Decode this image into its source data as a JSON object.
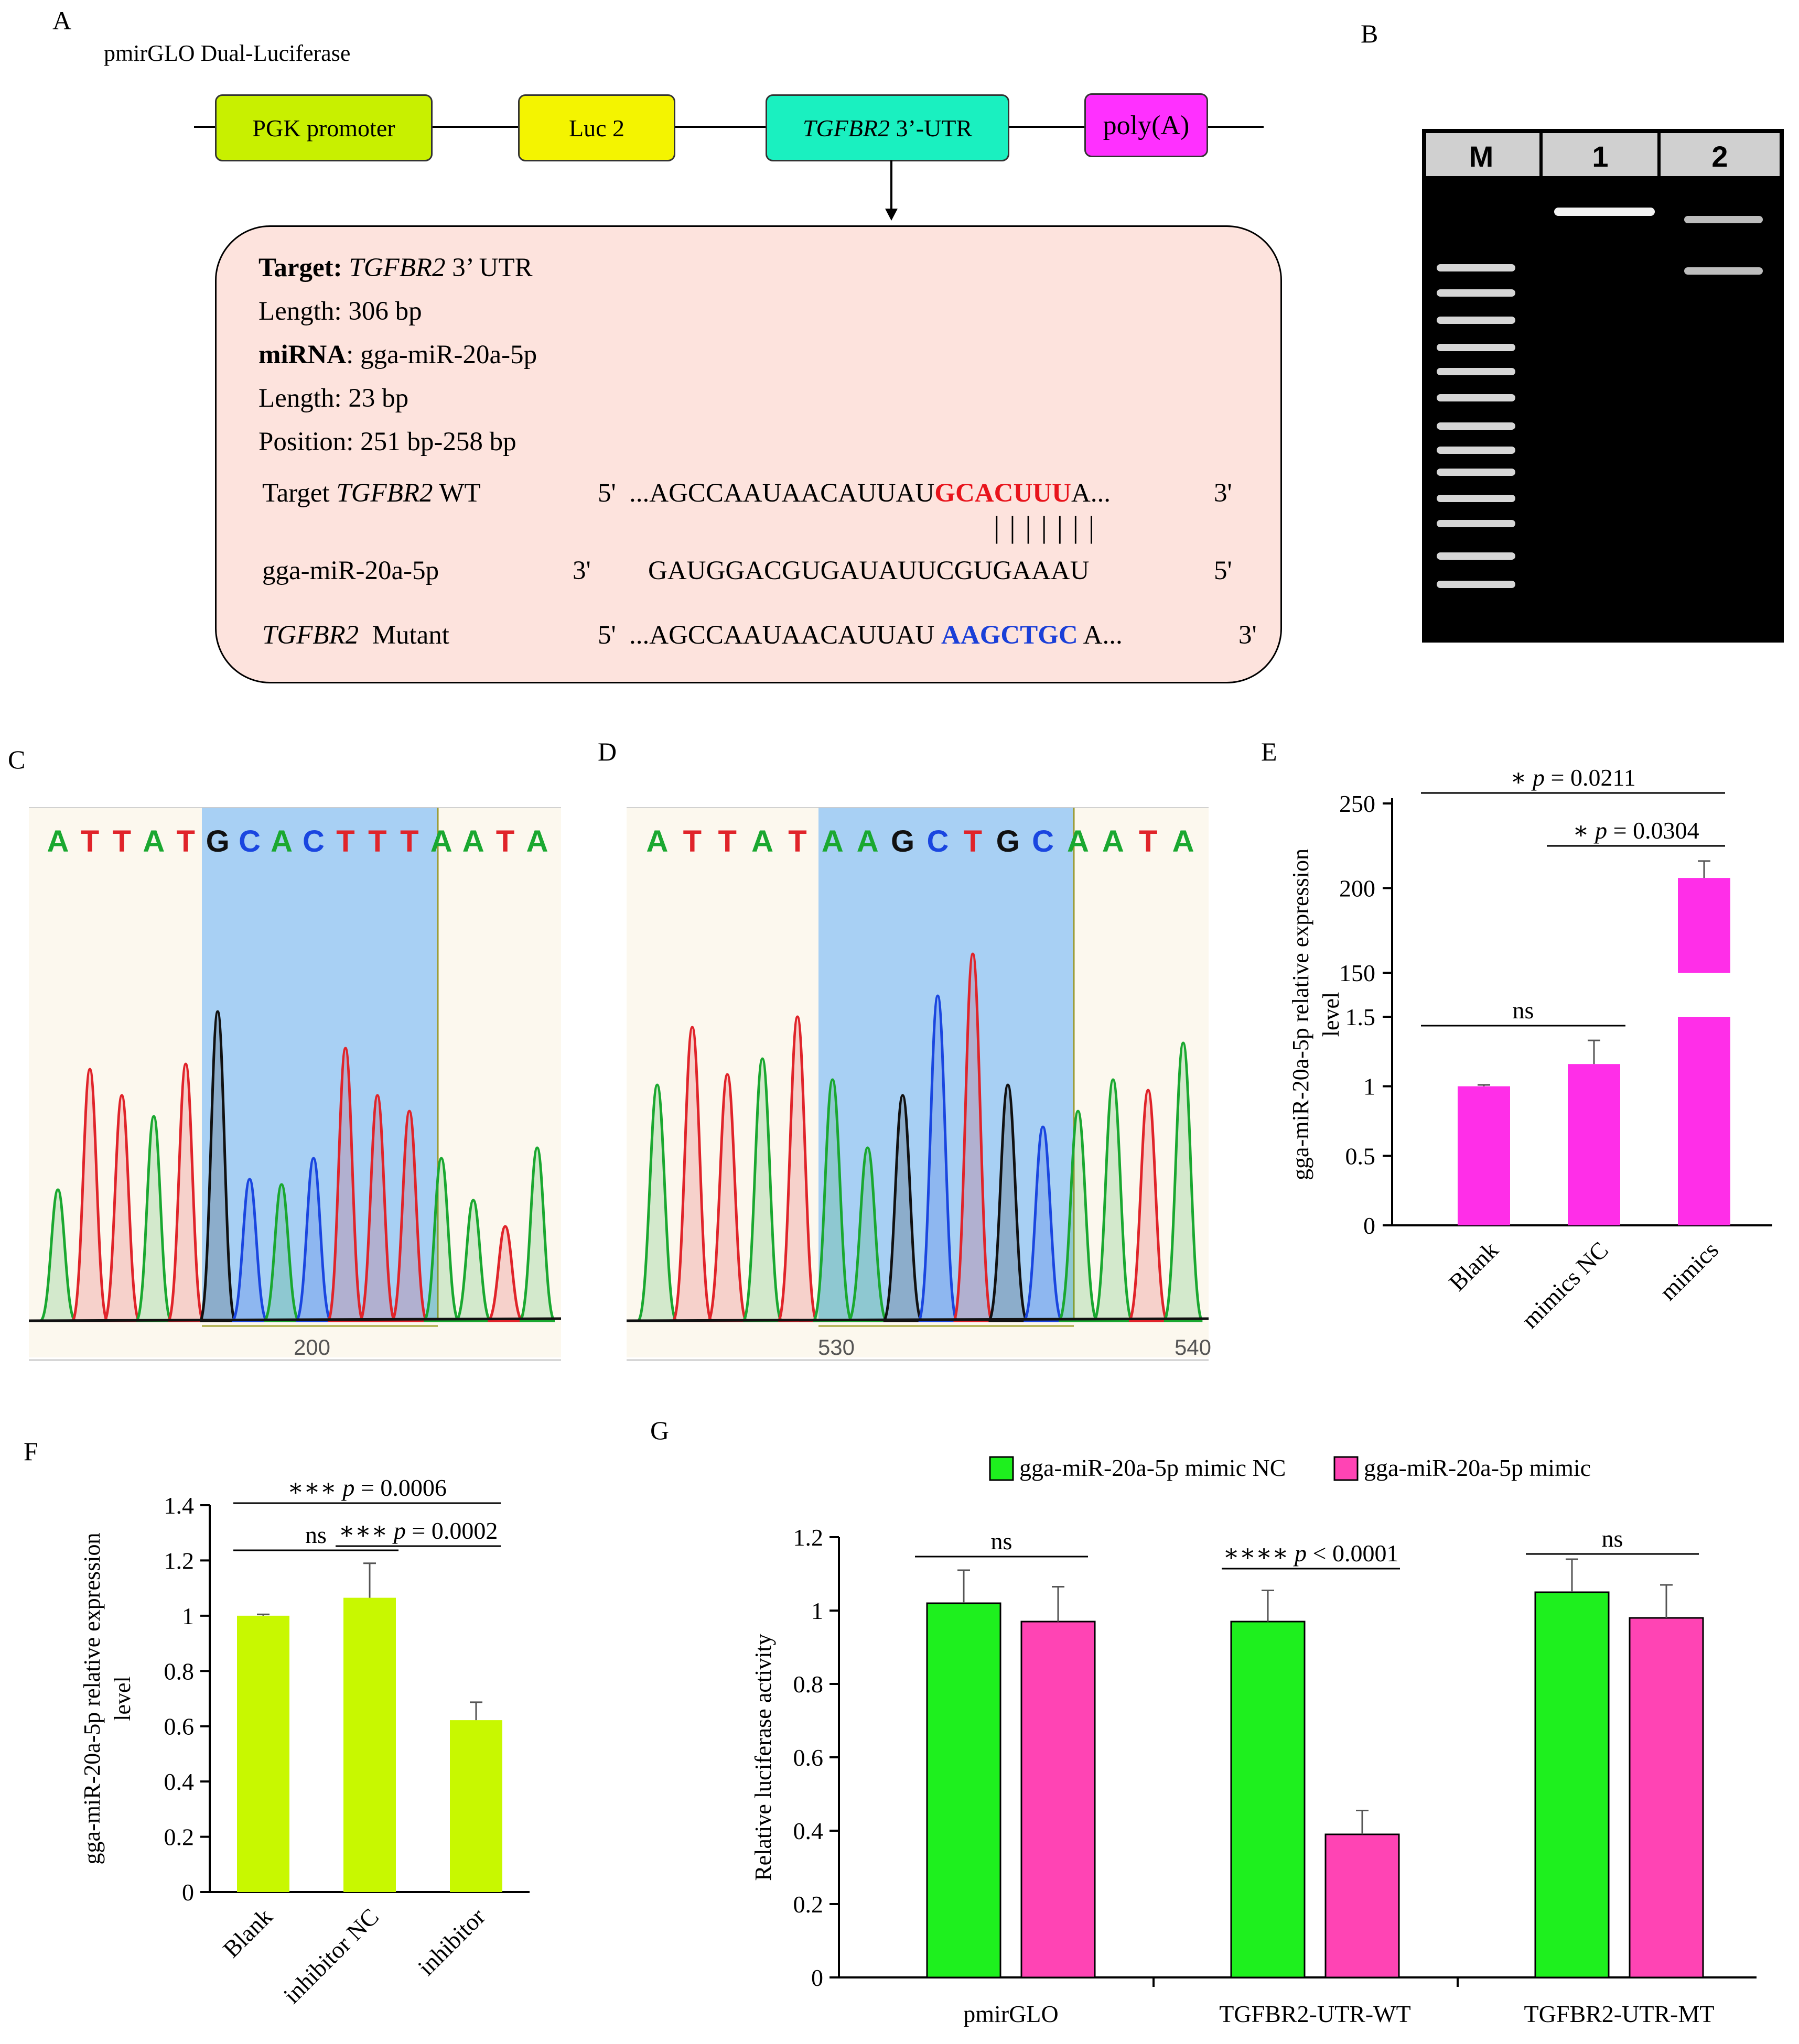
{
  "panel_labels": {
    "a": "A",
    "b": "B",
    "c": "C",
    "d": "D",
    "e": "E",
    "f": "F",
    "g": "G"
  },
  "panel_a": {
    "vector_title": "pmirGLO Dual-Luciferase",
    "boxes": {
      "pgk": {
        "label": "PGK promoter",
        "color": "#c8f000"
      },
      "luc": {
        "label": "Luc 2",
        "color": "#f4f400"
      },
      "utr": {
        "gene": "TGFBR2",
        "label": " 3’-UTR",
        "color": "#1af0c0"
      },
      "polya": {
        "label": "poly(A)",
        "color": "#ff30ff"
      }
    },
    "info_bg": "#fde3dd",
    "info": {
      "target_label": "Target:",
      "target_gene": "TGFBR2",
      "target_rest": " 3’ UTR",
      "length1": "Length: 306 bp",
      "mirna_label": "miRNA",
      "mirna_rest": ": gga-miR-20a-5p",
      "length2": "Length: 23 bp",
      "position": "Position: 251 bp-258 bp"
    },
    "wt_row": {
      "prefix": "Target ",
      "gene": "TGFBR2",
      "suffix": " WT",
      "five": "5'",
      "seq": "...AGCCAAUAACAUUAU",
      "highlight": "GCACUUU",
      "tail": "A...",
      "three": "3'",
      "highlight_color": "#e8141c"
    },
    "pairing": "| | | | | | |",
    "mirna_row": {
      "name": "gga-miR-20a-5p",
      "three": "3'",
      "seq": "GAUGGACGUGAUAUUCGUGAAAU",
      "five": "5'"
    },
    "mut_row": {
      "gene": "TGFBR2",
      "suffix": "  Mutant",
      "five": "5'",
      "seq": "...AGCCAAUAACAUUAU ",
      "highlight": "AAGCTGC",
      "tail": " A...",
      "three": "3'",
      "highlight_color": "#1a3fd8"
    }
  },
  "panel_b": {
    "lanes": [
      "M",
      "1",
      "2"
    ]
  },
  "panel_c": {
    "bases": [
      "A",
      "T",
      "T",
      "A",
      "T",
      "G",
      "C",
      "A",
      "C",
      "T",
      "T",
      "T",
      "A",
      "A",
      "T",
      "A"
    ],
    "tick": "200"
  },
  "panel_d": {
    "bases": [
      "A",
      "T",
      "T",
      "A",
      "T",
      "A",
      "A",
      "G",
      "C",
      "T",
      "G",
      "C",
      "A",
      "A",
      "T",
      "A"
    ],
    "ticks": [
      "530",
      "540"
    ]
  },
  "base_colors": {
    "A": "#1aa830",
    "T": "#e0242a",
    "G": "#111111",
    "C": "#1a46e0"
  },
  "chart_data": [
    {
      "id": "E",
      "type": "bar",
      "title": "",
      "ylabel": "gga-miR-20a-5p relative expression level",
      "categories": [
        "Blank",
        "mimics NC",
        "mimics"
      ],
      "values": [
        1.0,
        1.16,
        206
      ],
      "errors": [
        0.01,
        0.17,
        10
      ],
      "color": "#ff2ee8",
      "axis_break": {
        "lower": [
          0,
          1.5
        ],
        "upper": [
          150,
          250
        ]
      },
      "yticks_lower": [
        "0",
        "0.5",
        "1",
        "1.5"
      ],
      "yticks_upper": [
        "150",
        "200",
        "250"
      ],
      "annotations": [
        {
          "from": 0,
          "to": 2,
          "stars": "∗",
          "text": "p = 0.0211"
        },
        {
          "from": 1,
          "to": 2,
          "stars": "∗",
          "text": "p = 0.0304"
        },
        {
          "from": 0,
          "to": 1,
          "stars": "",
          "text": "ns"
        }
      ]
    },
    {
      "id": "F",
      "type": "bar",
      "title": "",
      "ylabel": "gga-miR-20a-5p relative expression level",
      "categories": [
        "Blank",
        "inhibitor NC",
        "inhibitor"
      ],
      "values": [
        1.0,
        1.065,
        0.622
      ],
      "errors": [
        0.005,
        0.125,
        0.065
      ],
      "color": "#c8f800",
      "ylim": [
        0,
        1.4
      ],
      "yticks": [
        "0",
        "0.2",
        "0.4",
        "0.6",
        "0.8",
        "1",
        "1.2",
        "1.4"
      ],
      "annotations": [
        {
          "from": 0,
          "to": 2,
          "stars": "∗∗∗",
          "text": "p = 0.0006"
        },
        {
          "from": 0,
          "to": 1,
          "stars": "",
          "text": "ns"
        },
        {
          "from": 1,
          "to": 2,
          "stars": "∗∗∗",
          "text": "p = 0.0002"
        }
      ]
    },
    {
      "id": "G",
      "type": "bar",
      "title": "",
      "ylabel": "Relative luciferase activity",
      "categories": [
        "pmirGLO",
        "TGFBR2-UTR-WT",
        "TGFBR2-UTR-MT"
      ],
      "series": [
        {
          "name": "gga-miR-20a-5p mimic NC",
          "values": [
            1.02,
            0.97,
            1.05
          ],
          "errors": [
            0.09,
            0.085,
            0.09
          ],
          "color": "#1ef01e"
        },
        {
          "name": "gga-miR-20a-5p mimic",
          "values": [
            0.97,
            0.39,
            0.98
          ],
          "errors": [
            0.095,
            0.065,
            0.09
          ],
          "color": "#ff44b4"
        }
      ],
      "ylim": [
        0,
        1.2
      ],
      "yticks": [
        "0",
        "0.2",
        "0.4",
        "0.6",
        "0.8",
        "1",
        "1.2"
      ],
      "legend": "top",
      "annotations": [
        {
          "group": 0,
          "stars": "",
          "text": "ns"
        },
        {
          "group": 1,
          "stars": "∗∗∗∗",
          "text": "p < 0.0001"
        },
        {
          "group": 2,
          "stars": "",
          "text": "ns"
        }
      ]
    }
  ]
}
